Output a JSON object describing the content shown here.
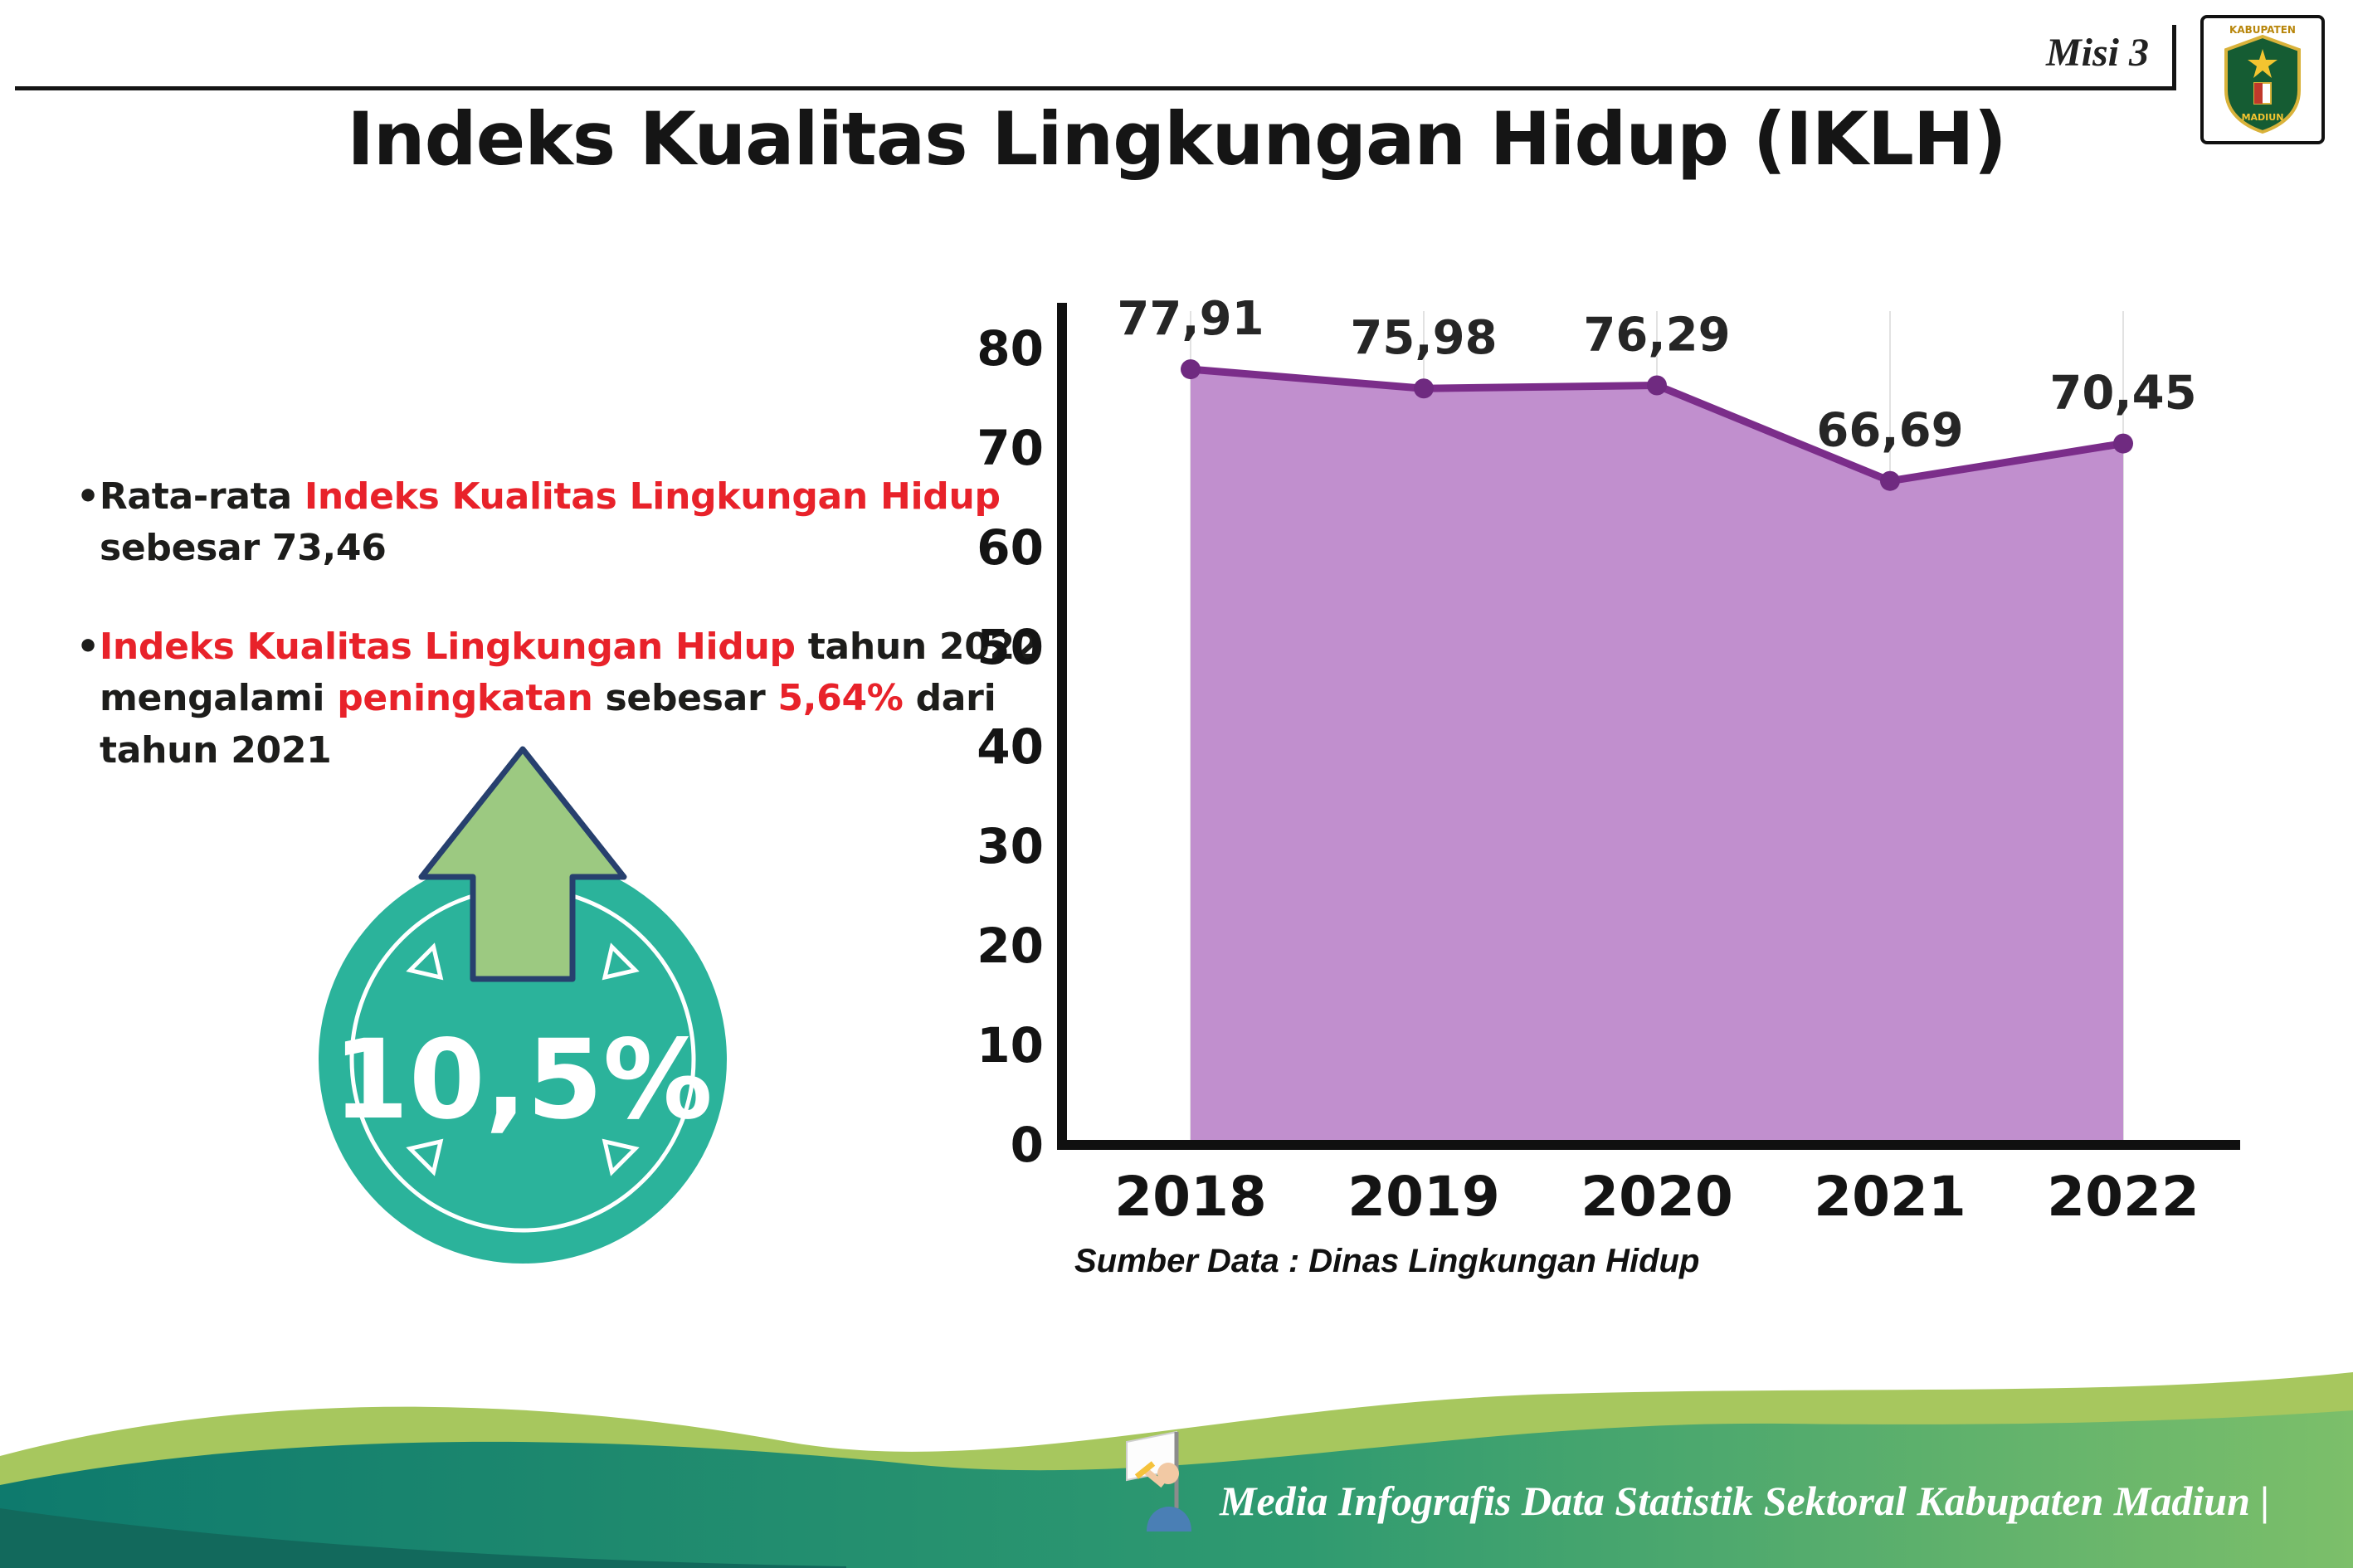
{
  "header": {
    "misi_label": "Misi 3",
    "title": "Indeks Kualitas Lingkungan Hidup (IKLH)",
    "logo_top_text": "KABUPATEN",
    "logo_bottom_text": "MADIUN"
  },
  "bullets": {
    "marker": "•",
    "b1": {
      "s0": "Rata-rata ",
      "s1": "Indeks Kualitas Lingkungan Hidup",
      "s2": " sebesar 73,46"
    },
    "b2": {
      "s0": "Indeks Kualitas Lingkungan Hidup",
      "s1": " tahun 2022 mengalami ",
      "s2": "peningkatan",
      "s3": " sebesar ",
      "s4": "5,64%",
      "s5": " dari tahun 2021"
    }
  },
  "badge": {
    "value": "10,5%",
    "icon": "arrow-up"
  },
  "chart_data": {
    "type": "area",
    "title": "Indeks Kualitas Lingkungan Hidup (IKLH)",
    "categories": [
      "2018",
      "2019",
      "2020",
      "2021",
      "2022"
    ],
    "values": [
      77.91,
      75.98,
      76.29,
      66.69,
      70.45
    ],
    "value_labels": [
      "77,91",
      "75,98",
      "76,29",
      "66,69",
      "70,45"
    ],
    "xlabel": "",
    "ylabel": "",
    "ylim": [
      0,
      80
    ],
    "yticks": [
      0,
      10,
      20,
      30,
      40,
      50,
      60,
      70,
      80
    ],
    "grid": "faint-vertical",
    "legend_position": "none",
    "source": "Sumber Data : Dinas Lingkungan Hidup",
    "colors": {
      "area": "#c18fce",
      "line": "#7b2d8a",
      "point": "#6f2a80",
      "axis": "#101010",
      "label": "#262626"
    }
  },
  "footer": {
    "text": "Media Infografis Data Statistik Sektoral Kabupaten Madiun |"
  },
  "colors": {
    "accent_red": "#e8222a",
    "badge_teal": "#2bb39b",
    "arrow_green": "#9cc981",
    "arrow_outline": "#27406e",
    "footer_light_green": "#a7c75e",
    "footer_teal": "#0e7a6d",
    "footer_green": "#7cbf6a"
  }
}
